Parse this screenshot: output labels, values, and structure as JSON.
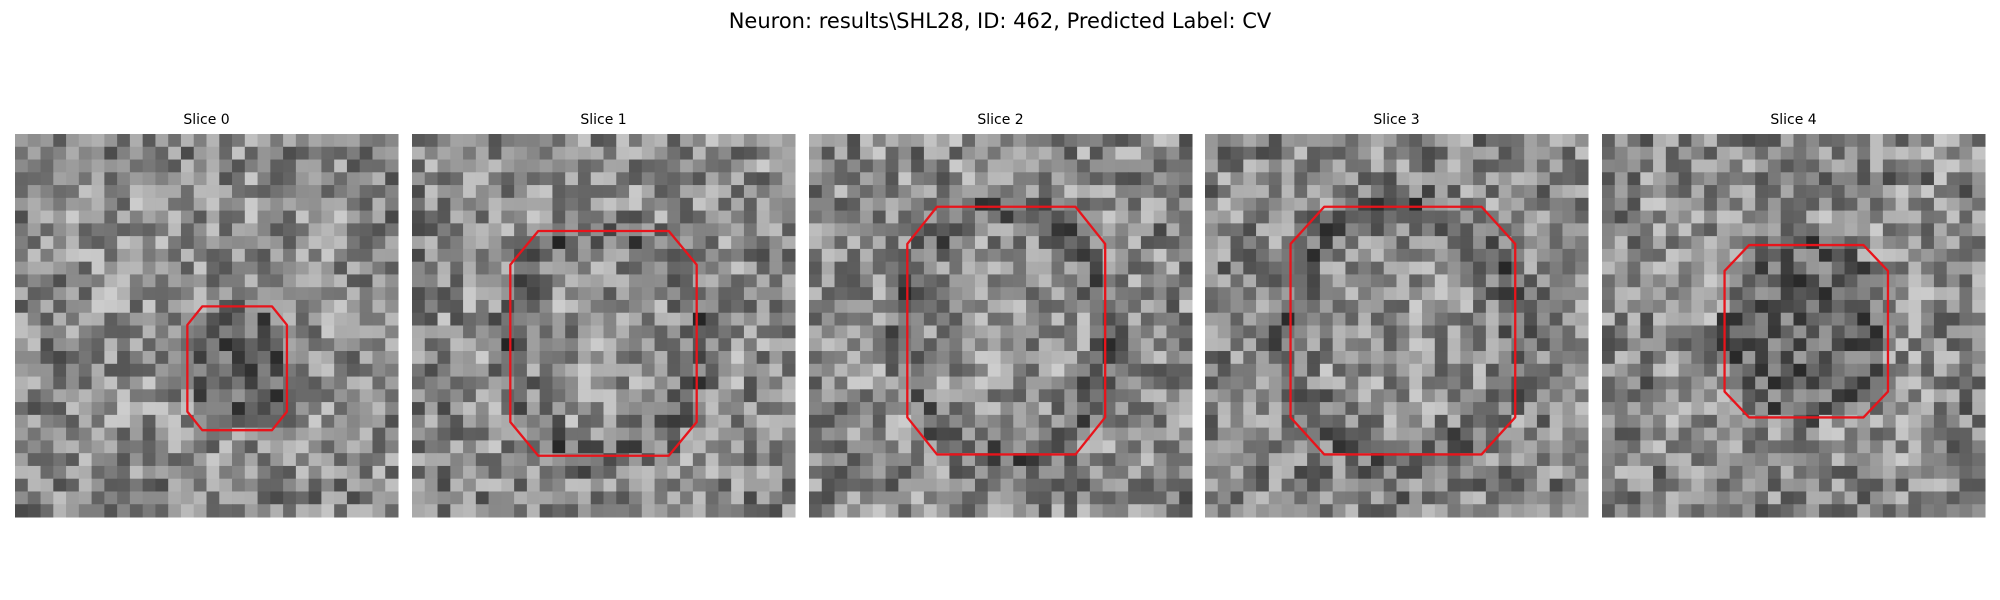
{
  "title": "Neuron: results\\SHL28, ID: 462, Predicted Label: CV",
  "panels": [
    {
      "title": "Slice 0"
    },
    {
      "title": "Slice 1"
    },
    {
      "title": "Slice 2"
    },
    {
      "title": "Slice 3"
    },
    {
      "title": "Slice 4"
    }
  ]
}
